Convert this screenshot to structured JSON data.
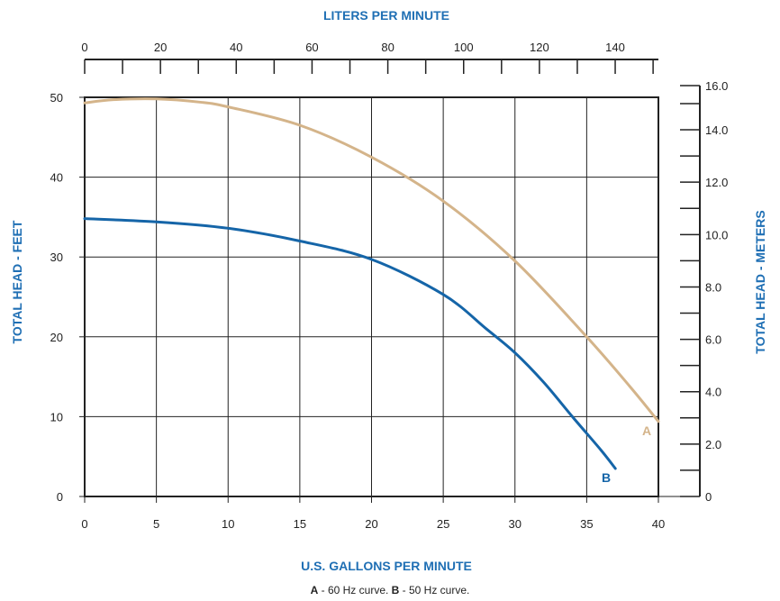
{
  "colors": {
    "axis_title": "#1F6FB4",
    "curve_a": "#D4B48A",
    "curve_b": "#1565A8",
    "grid": "#222222"
  },
  "caption": {
    "a_key": "A",
    "a_text": " - 60 Hz curve.  ",
    "b_key": "B",
    "b_text": " - 50 Hz curve."
  },
  "chart_data": {
    "type": "line",
    "title": "",
    "xlabel": "U.S. GALLONS PER MINUTE",
    "x2label": "LITERS PER MINUTE",
    "ylabel": "TOTAL HEAD - FEET",
    "y2label": "TOTAL HEAD - METERS",
    "xlim": [
      0,
      40
    ],
    "ylim": [
      0,
      50
    ],
    "x2lim": [
      0,
      151.4
    ],
    "y2lim": [
      0,
      15.24
    ],
    "grid": true,
    "x_ticks": [
      0,
      5,
      10,
      15,
      20,
      25,
      30,
      35,
      40
    ],
    "y_ticks": [
      0,
      10,
      20,
      30,
      40,
      50
    ],
    "x2_ticks": [
      0,
      20,
      40,
      60,
      80,
      100,
      120,
      140
    ],
    "y2_ticks": [
      0,
      2.0,
      4.0,
      6.0,
      8.0,
      10.0,
      12.0,
      14.0,
      16.0
    ],
    "x_tick_labels": [
      "0",
      "5",
      "10",
      "15",
      "20",
      "25",
      "30",
      "35",
      "40"
    ],
    "y_tick_labels": [
      "0",
      "10",
      "20",
      "30",
      "40",
      "50"
    ],
    "x2_tick_labels": [
      "0",
      "20",
      "40",
      "60",
      "80",
      "100",
      "120",
      "140"
    ],
    "y2_tick_labels": [
      "0",
      "2.0",
      "4.0",
      "6.0",
      "8.0",
      "10.0",
      "12.0",
      "14.0",
      "16.0"
    ],
    "series": [
      {
        "name": "A",
        "x": [
          0,
          2,
          5,
          8,
          10,
          15,
          20,
          25,
          30,
          35,
          38,
          40
        ],
        "y": [
          49.3,
          49.7,
          49.8,
          49.4,
          48.8,
          46.5,
          42.5,
          37.0,
          29.5,
          20.0,
          13.8,
          9.4
        ]
      },
      {
        "name": "B",
        "x": [
          0,
          5,
          10,
          15,
          20,
          25,
          28,
          30,
          32,
          34,
          36,
          37
        ],
        "y": [
          34.8,
          34.4,
          33.6,
          32.0,
          29.7,
          25.3,
          21.0,
          18.0,
          14.3,
          10.0,
          5.8,
          3.5
        ]
      }
    ]
  }
}
